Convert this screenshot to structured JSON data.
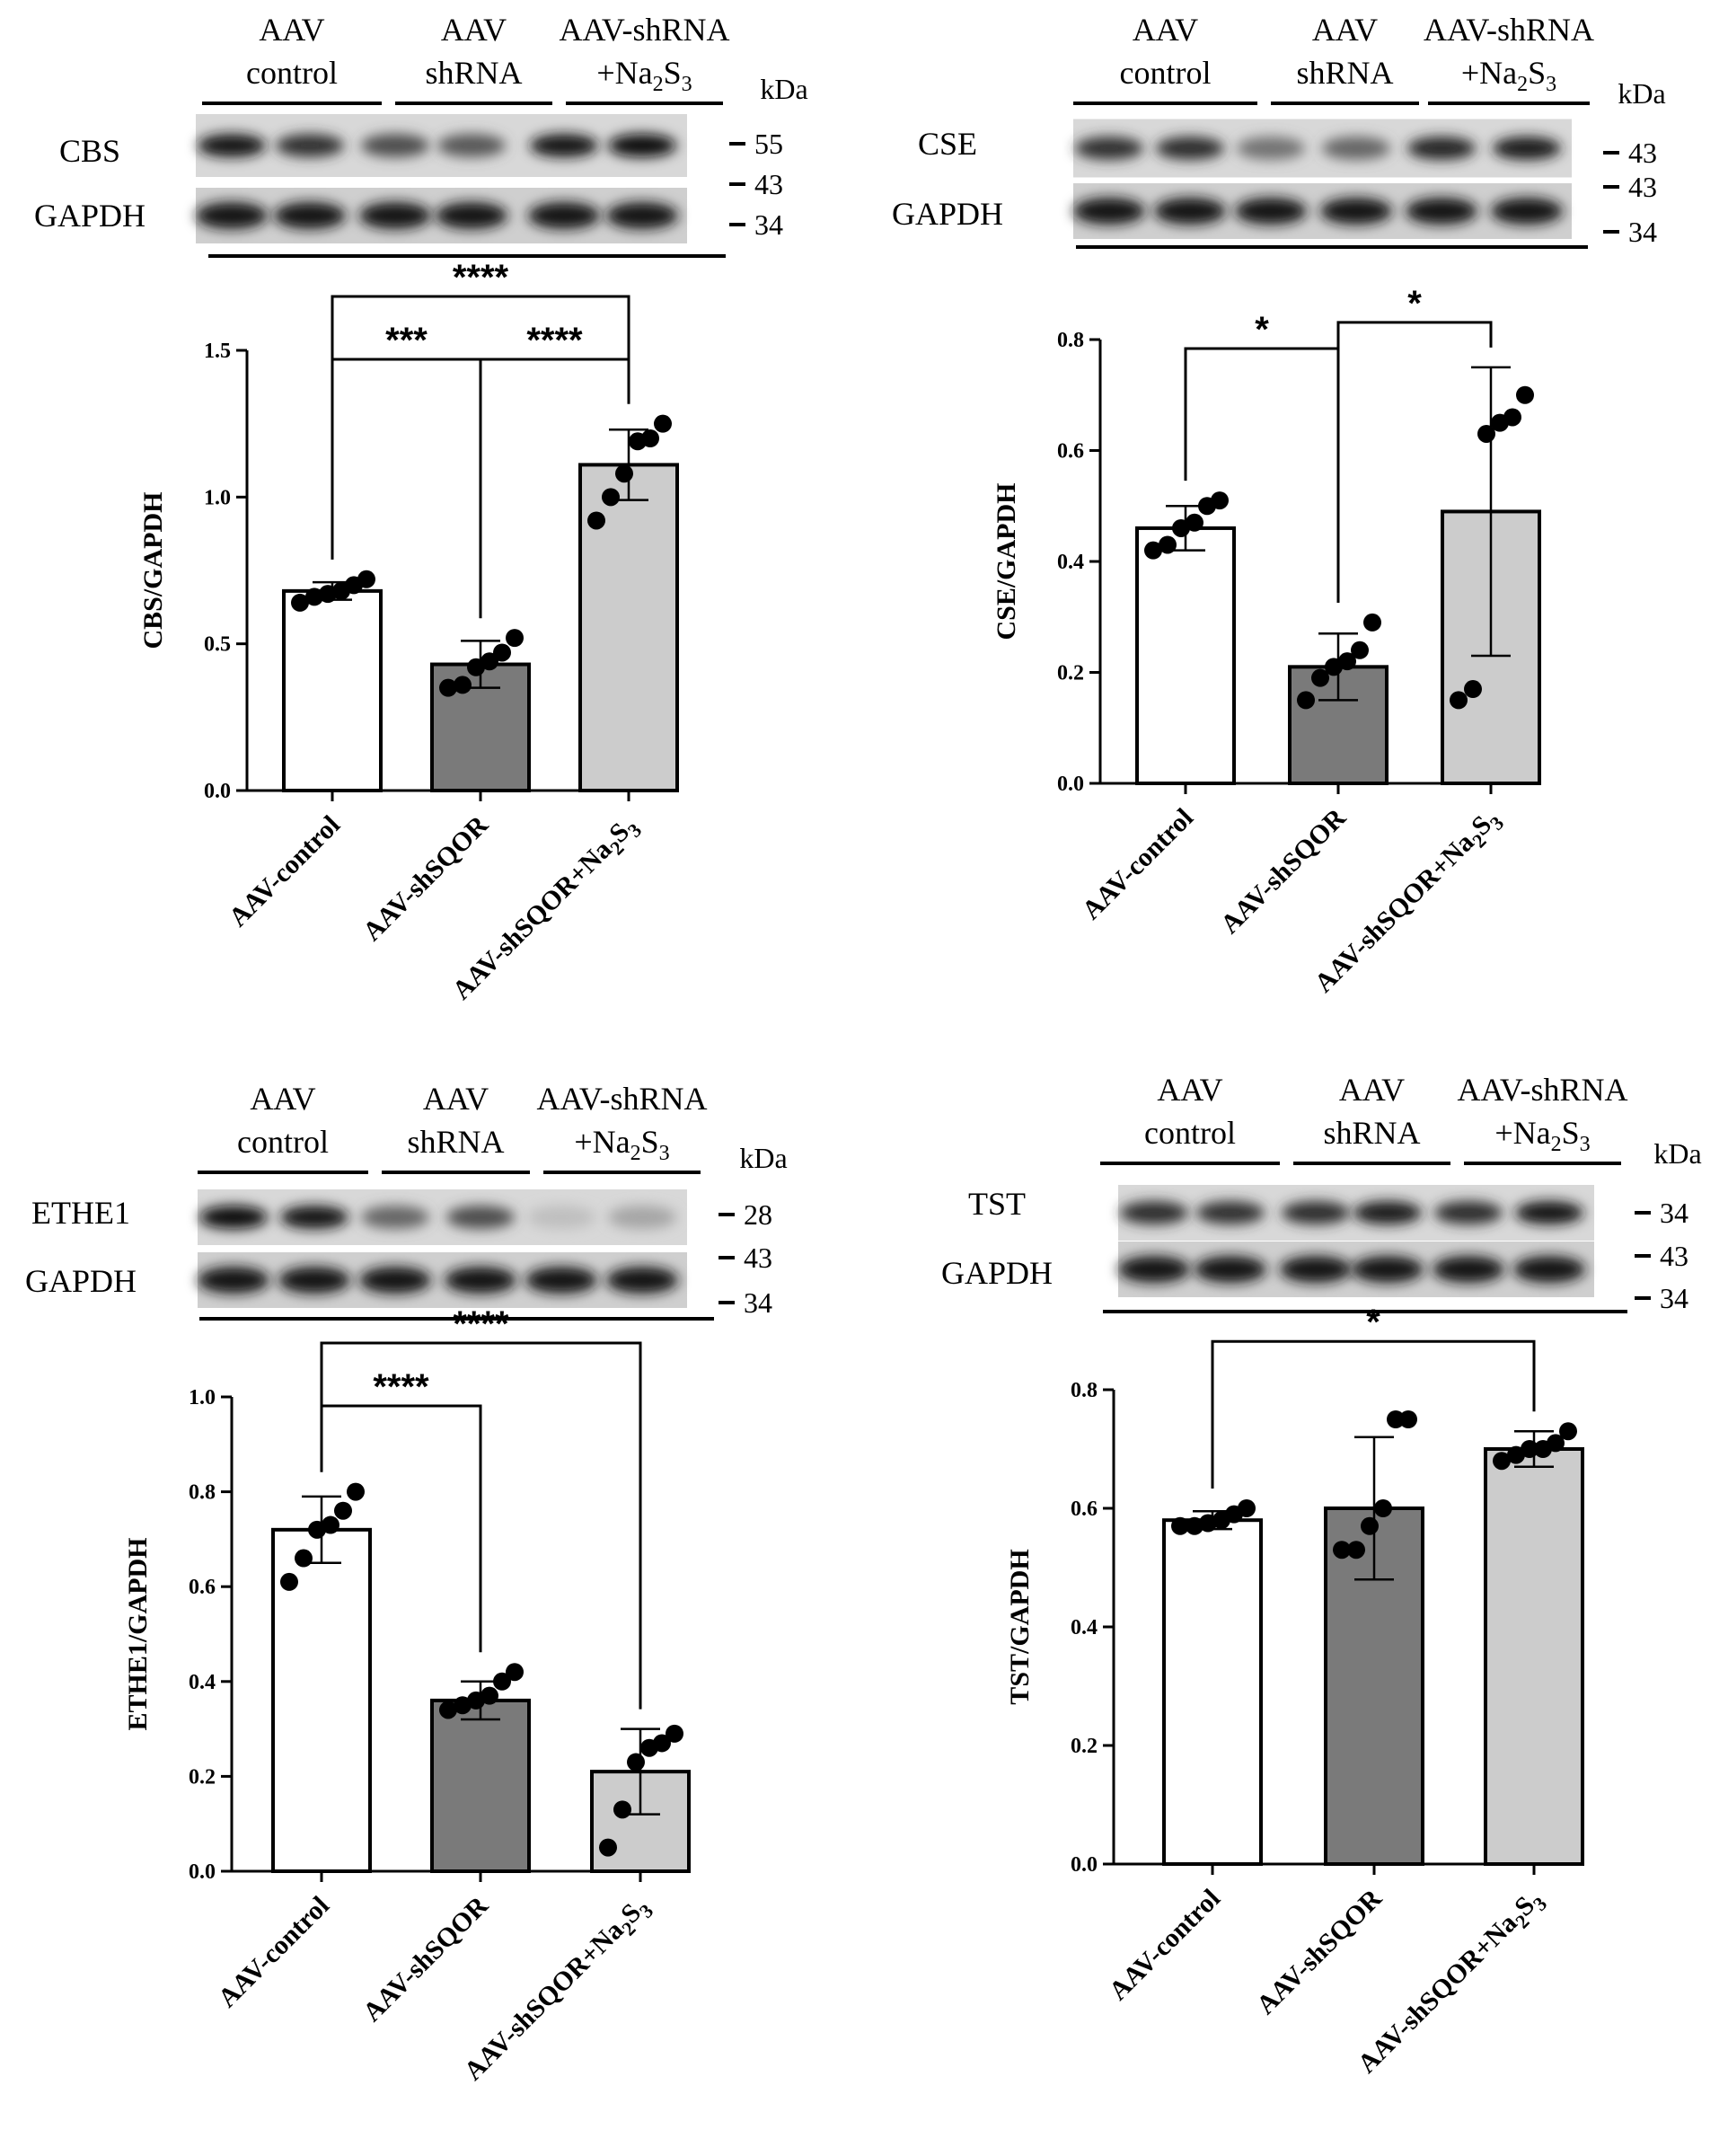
{
  "colors": {
    "control_bar": "#ffffff",
    "shsqor_bar": "#7a7a7a",
    "na2s3_bar": "#cccccc",
    "stroke": "#000000"
  },
  "panels": [
    {
      "id": "cbs",
      "blot": {
        "groups": [
          {
            "line1": "AAV",
            "line2": "control"
          },
          {
            "line1": "AAV",
            "line2": "shRNA"
          },
          {
            "line1": "AAV-shRNA",
            "line2": "+Na",
            "line2_sub1": "2",
            "line2_mid": "S",
            "line2_sub2": "3"
          }
        ],
        "kda_label": "kDa",
        "protein_label": "CBS",
        "loading_label": "GAPDH",
        "markers": [
          "55",
          "43",
          "34"
        ],
        "target_intensity": [
          0.92,
          0.8,
          0.7,
          0.65,
          0.9,
          0.95
        ]
      }
    },
    {
      "id": "cse",
      "blot": {
        "groups": [
          {
            "line1": "AAV",
            "line2": "control"
          },
          {
            "line1": "AAV",
            "line2": "shRNA"
          },
          {
            "line1": "AAV-shRNA",
            "line2": "+Na",
            "line2_sub1": "2",
            "line2_mid": "S",
            "line2_sub2": "3"
          }
        ],
        "kda_label": "kDa",
        "protein_label": "CSE",
        "loading_label": "GAPDH",
        "markers": [
          "43",
          "43",
          "34"
        ],
        "target_intensity": [
          0.8,
          0.82,
          0.55,
          0.6,
          0.85,
          0.88
        ]
      }
    },
    {
      "id": "ethe1",
      "blot": {
        "groups": [
          {
            "line1": "AAV",
            "line2": "control"
          },
          {
            "line1": "AAV",
            "line2": "shRNA"
          },
          {
            "line1": "AAV-shRNA",
            "line2": "+Na",
            "line2_sub1": "2",
            "line2_mid": "S",
            "line2_sub2": "3"
          }
        ],
        "kda_label": "kDa",
        "protein_label": "ETHE1",
        "loading_label": "GAPDH",
        "markers": [
          "28",
          "43",
          "34"
        ],
        "target_intensity": [
          0.95,
          0.92,
          0.6,
          0.7,
          0.25,
          0.35
        ]
      }
    },
    {
      "id": "tst",
      "blot": {
        "groups": [
          {
            "line1": "AAV",
            "line2": "control"
          },
          {
            "line1": "AAV",
            "line2": "shRNA"
          },
          {
            "line1": "AAV-shRNA",
            "line2": "+Na",
            "line2_sub1": "2",
            "line2_mid": "S",
            "line2_sub2": "3"
          }
        ],
        "kda_label": "kDa",
        "protein_label": "TST",
        "loading_label": "GAPDH",
        "markers": [
          "34",
          "43",
          "34"
        ],
        "target_intensity": [
          0.82,
          0.8,
          0.82,
          0.88,
          0.82,
          0.9
        ]
      }
    }
  ],
  "chart_data": [
    {
      "type": "bar",
      "panel": "cbs",
      "categories": [
        "AAV-control",
        "AAV-shSQOR",
        "AAV-shSQOR+Na2S3"
      ],
      "ylabel": "CBS/GAPDH",
      "ylim": [
        0,
        1.5
      ],
      "yticks": [
        "0.0",
        "0.5",
        "1.0",
        "1.5"
      ],
      "values": [
        0.68,
        0.43,
        1.11
      ],
      "errors": [
        0.03,
        0.08,
        0.12
      ],
      "points": [
        [
          0.64,
          0.66,
          0.67,
          0.68,
          0.7,
          0.72
        ],
        [
          0.35,
          0.36,
          0.42,
          0.44,
          0.47,
          0.52
        ],
        [
          0.92,
          1.0,
          1.08,
          1.19,
          1.2,
          1.25
        ]
      ],
      "significance": [
        {
          "from": 0,
          "to": 1,
          "label": "***"
        },
        {
          "from": 1,
          "to": 2,
          "label": "****"
        },
        {
          "from": 0,
          "to": 2,
          "label": "****"
        }
      ]
    },
    {
      "type": "bar",
      "panel": "cse",
      "categories": [
        "AAV-control",
        "AAV-shSQOR",
        "AAV-shSQOR+Na2S3"
      ],
      "ylabel": "CSE/GAPDH",
      "ylim": [
        0,
        0.8
      ],
      "yticks": [
        "0.0",
        "0.2",
        "0.4",
        "0.6",
        "0.8"
      ],
      "values": [
        0.46,
        0.21,
        0.49
      ],
      "errors": [
        0.04,
        0.06,
        0.26
      ],
      "points": [
        [
          0.42,
          0.43,
          0.46,
          0.47,
          0.5,
          0.51
        ],
        [
          0.15,
          0.19,
          0.21,
          0.22,
          0.24,
          0.29
        ],
        [
          0.15,
          0.17,
          0.63,
          0.65,
          0.66,
          0.7
        ]
      ],
      "significance": [
        {
          "from": 0,
          "to": 1,
          "label": "*"
        },
        {
          "from": 1,
          "to": 2,
          "label": "*"
        }
      ]
    },
    {
      "type": "bar",
      "panel": "ethe1",
      "categories": [
        "AAV-control",
        "AAV-shSQOR",
        "AAV-shSQOR+Na2S3"
      ],
      "ylabel": "ETHE1/GAPDH",
      "ylim": [
        0,
        1.0
      ],
      "yticks": [
        "0.0",
        "0.2",
        "0.4",
        "0.6",
        "0.8",
        "1.0"
      ],
      "values": [
        0.72,
        0.36,
        0.21
      ],
      "errors": [
        0.07,
        0.04,
        0.09
      ],
      "points": [
        [
          0.61,
          0.66,
          0.72,
          0.73,
          0.76,
          0.8
        ],
        [
          0.34,
          0.35,
          0.36,
          0.37,
          0.4,
          0.42
        ],
        [
          0.05,
          0.13,
          0.23,
          0.26,
          0.27,
          0.29
        ]
      ],
      "significance": [
        {
          "from": 0,
          "to": 1,
          "label": "****"
        },
        {
          "from": 0,
          "to": 2,
          "label": "****"
        }
      ]
    },
    {
      "type": "bar",
      "panel": "tst",
      "categories": [
        "AAV-control",
        "AAV-shSQOR",
        "AAV-shSQOR+Na2S3"
      ],
      "ylabel": "TST/GAPDH",
      "ylim": [
        0,
        0.8
      ],
      "yticks": [
        "0.0",
        "0.2",
        "0.4",
        "0.6",
        "0.8"
      ],
      "values": [
        0.58,
        0.6,
        0.7
      ],
      "errors": [
        0.015,
        0.12,
        0.03
      ],
      "points": [
        [
          0.57,
          0.57,
          0.575,
          0.58,
          0.59,
          0.6
        ],
        [
          0.53,
          0.53,
          0.57,
          0.6,
          0.75,
          0.75
        ],
        [
          0.68,
          0.69,
          0.7,
          0.7,
          0.71,
          0.73
        ]
      ],
      "significance": [
        {
          "from": 0,
          "to": 2,
          "label": "*"
        }
      ]
    }
  ]
}
